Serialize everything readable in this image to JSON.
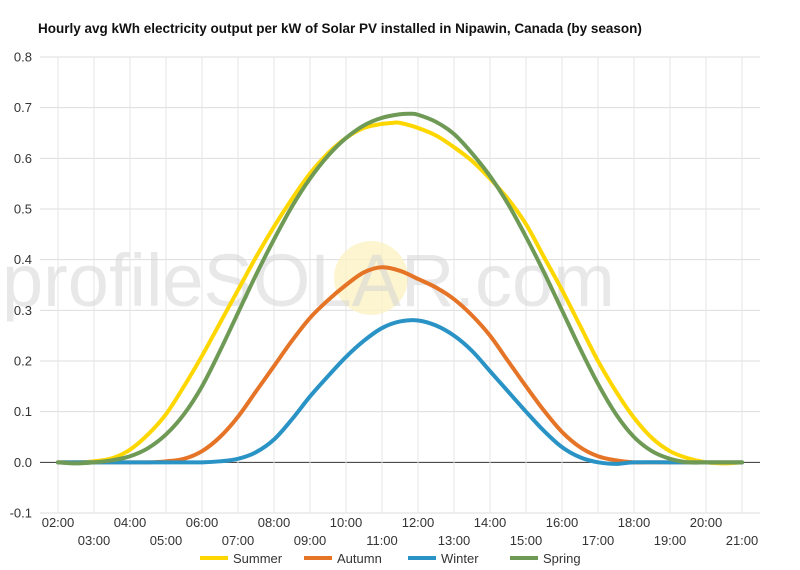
{
  "chart_data": {
    "type": "line",
    "title": "Hourly avg kWh electricity output per kW of Solar PV installed in Nipawin, Canada (by season)",
    "xlabel": "",
    "ylabel": "",
    "ylim": [
      -0.1,
      0.8
    ],
    "yticks": [
      "0.8",
      "0.7",
      "0.6",
      "0.5",
      "0.4",
      "0.3",
      "0.2",
      "0.1",
      "0.0",
      "-0.1"
    ],
    "x": [
      2,
      3,
      4,
      5,
      6,
      7,
      8,
      9,
      10,
      11,
      12,
      13,
      14,
      15,
      16,
      17,
      18,
      19,
      20,
      21
    ],
    "x_labels": [
      "02:00",
      "03:00",
      "04:00",
      "05:00",
      "06:00",
      "07:00",
      "08:00",
      "09:00",
      "10:00",
      "11:00",
      "12:00",
      "13:00",
      "14:00",
      "15:00",
      "16:00",
      "17:00",
      "18:00",
      "19:00",
      "20:00",
      "21:00"
    ],
    "grid": true,
    "legend_position": "bottom",
    "series": [
      {
        "name": "Summer",
        "color": "#FFD700",
        "x": [
          2,
          2.5,
          3,
          3.5,
          4,
          4.5,
          5,
          5.5,
          6,
          6.5,
          7,
          7.5,
          8,
          8.5,
          9,
          9.5,
          10,
          10.5,
          11,
          11.3,
          11.5,
          12,
          12.5,
          13,
          13.5,
          14,
          14.5,
          15,
          15.5,
          16,
          16.5,
          17,
          17.5,
          18,
          18.5,
          19,
          19.5,
          20,
          20.5,
          21
        ],
        "values": [
          0.0,
          0.0,
          0.002,
          0.008,
          0.025,
          0.055,
          0.095,
          0.15,
          0.21,
          0.275,
          0.34,
          0.405,
          0.465,
          0.52,
          0.57,
          0.61,
          0.64,
          0.66,
          0.668,
          0.67,
          0.67,
          0.66,
          0.645,
          0.622,
          0.595,
          0.56,
          0.52,
          0.47,
          0.405,
          0.34,
          0.27,
          0.2,
          0.14,
          0.088,
          0.048,
          0.022,
          0.008,
          0.0,
          -0.002,
          0.0
        ]
      },
      {
        "name": "Autumn",
        "color": "#E57427",
        "x": [
          2,
          2.5,
          3,
          3.5,
          4,
          4.5,
          5,
          5.5,
          6,
          6.5,
          7,
          7.5,
          8,
          8.5,
          9,
          9.5,
          10,
          10.5,
          11,
          11.5,
          12,
          12.5,
          13,
          13.5,
          14,
          14.5,
          15,
          15.5,
          16,
          16.5,
          17,
          17.5,
          18,
          18.5,
          19,
          20,
          21
        ],
        "values": [
          0.0,
          0.0,
          0.0,
          0.0,
          0.0,
          0.0,
          0.002,
          0.007,
          0.022,
          0.05,
          0.09,
          0.14,
          0.19,
          0.24,
          0.285,
          0.32,
          0.35,
          0.375,
          0.385,
          0.378,
          0.362,
          0.345,
          0.322,
          0.29,
          0.25,
          0.2,
          0.15,
          0.102,
          0.06,
          0.03,
          0.012,
          0.004,
          0.0,
          0.0,
          0.0,
          0.0,
          0.0
        ]
      },
      {
        "name": "Winter",
        "color": "#2A93C6",
        "x": [
          2,
          3,
          4,
          5,
          6,
          6.5,
          7,
          7.5,
          8,
          8.5,
          9,
          9.5,
          10,
          10.5,
          11,
          11.5,
          12,
          12.5,
          13,
          13.5,
          14,
          14.5,
          15,
          15.5,
          16,
          16.5,
          17,
          17.5,
          18,
          19,
          20,
          21
        ],
        "values": [
          0.0,
          0.0,
          0.0,
          0.0,
          0.0,
          0.002,
          0.007,
          0.02,
          0.045,
          0.085,
          0.13,
          0.17,
          0.208,
          0.24,
          0.265,
          0.278,
          0.28,
          0.27,
          0.25,
          0.22,
          0.18,
          0.14,
          0.1,
          0.062,
          0.03,
          0.01,
          0.0,
          -0.003,
          0.0,
          0.0,
          0.0,
          0.0
        ]
      },
      {
        "name": "Spring",
        "color": "#6E9A56",
        "x": [
          2,
          2.5,
          3,
          3.5,
          4,
          4.5,
          5,
          5.5,
          6,
          6.5,
          7,
          7.5,
          8,
          8.5,
          9,
          9.5,
          10,
          10.5,
          11,
          11.5,
          11.8,
          12,
          12.5,
          13,
          13.5,
          14,
          14.5,
          15,
          15.5,
          16,
          16.5,
          17,
          17.5,
          18,
          18.5,
          19,
          19.5,
          20,
          20.5,
          21
        ],
        "values": [
          0.0,
          -0.002,
          0.0,
          0.004,
          0.012,
          0.028,
          0.055,
          0.095,
          0.15,
          0.22,
          0.295,
          0.37,
          0.44,
          0.505,
          0.56,
          0.605,
          0.64,
          0.665,
          0.68,
          0.687,
          0.688,
          0.686,
          0.672,
          0.648,
          0.61,
          0.565,
          0.51,
          0.445,
          0.375,
          0.3,
          0.225,
          0.155,
          0.095,
          0.05,
          0.022,
          0.007,
          0.0,
          0.0,
          0.0,
          0.0
        ]
      }
    ]
  },
  "watermark": {
    "text": "profileSOLAR.com"
  }
}
